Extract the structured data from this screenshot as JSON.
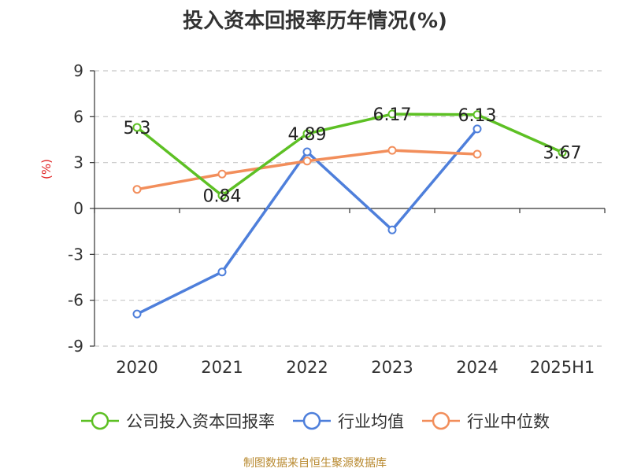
{
  "title": "投入资本回报率历年情况(%)",
  "source": "制图数据来自恒生聚源数据库",
  "chart_data": {
    "type": "line",
    "title": "投入资本回报率历年情况(%)",
    "ylabel": "(%)",
    "xlabel": "",
    "categories": [
      "2020",
      "2021",
      "2022",
      "2023",
      "2024",
      "2025H1"
    ],
    "ylim": [
      -9,
      9
    ],
    "yticks": [
      9,
      6,
      3,
      0,
      -3,
      -6,
      -9
    ],
    "grid": true,
    "legend_position": "bottom",
    "series": [
      {
        "name": "公司投入资本回报率",
        "color": "#5dc024",
        "values": [
          5.3,
          0.84,
          4.89,
          6.17,
          6.13,
          3.67
        ],
        "labels": [
          "5.3",
          "0.84",
          "4.89",
          "6.17",
          "6.13",
          "3.67"
        ]
      },
      {
        "name": "行业均值",
        "color": "#4e7fdb",
        "values": [
          -6.9,
          -4.15,
          3.7,
          -1.4,
          5.2,
          null
        ]
      },
      {
        "name": "行业中位数",
        "color": "#f28e5b",
        "values": [
          1.25,
          2.25,
          3.1,
          3.8,
          3.55,
          null
        ]
      }
    ]
  }
}
